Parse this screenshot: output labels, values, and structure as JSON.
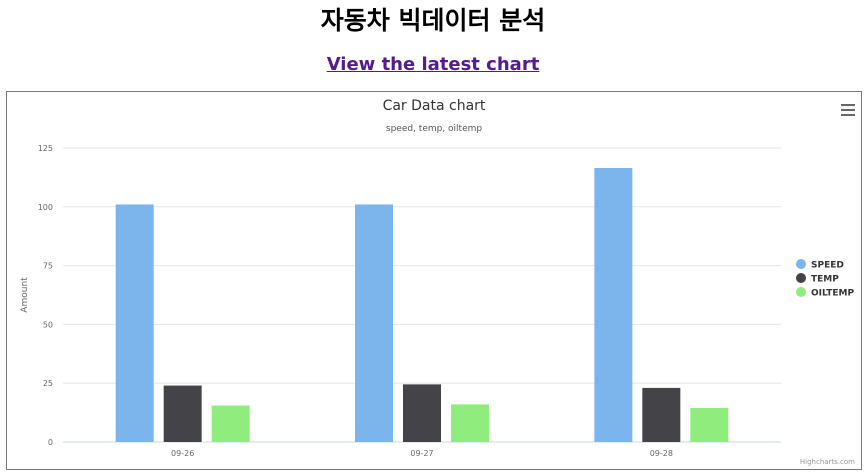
{
  "page": {
    "heading": "자동차 빅데이터 분석",
    "link_text": "View the latest chart"
  },
  "chart_ui": {
    "credits": "Highcharts.com",
    "menu_icon": "hamburger-menu-icon"
  },
  "chart_data": {
    "type": "bar",
    "title": "Car Data chart",
    "subtitle": "speed, temp, oiltemp",
    "xlabel": "",
    "ylabel": "Amount",
    "categories": [
      "09-26",
      "09-27",
      "09-28"
    ],
    "ylim": [
      0,
      125
    ],
    "yticks": [
      0,
      25,
      50,
      75,
      100,
      125
    ],
    "grid": true,
    "legend_position": "right",
    "series": [
      {
        "name": "SPEED",
        "color": "#7cb5ec",
        "values": [
          101,
          101,
          116.5
        ]
      },
      {
        "name": "TEMP",
        "color": "#434348",
        "values": [
          24,
          24.5,
          23
        ]
      },
      {
        "name": "OILTEMP",
        "color": "#90ed7d",
        "values": [
          15.5,
          16,
          14.5
        ]
      }
    ]
  }
}
